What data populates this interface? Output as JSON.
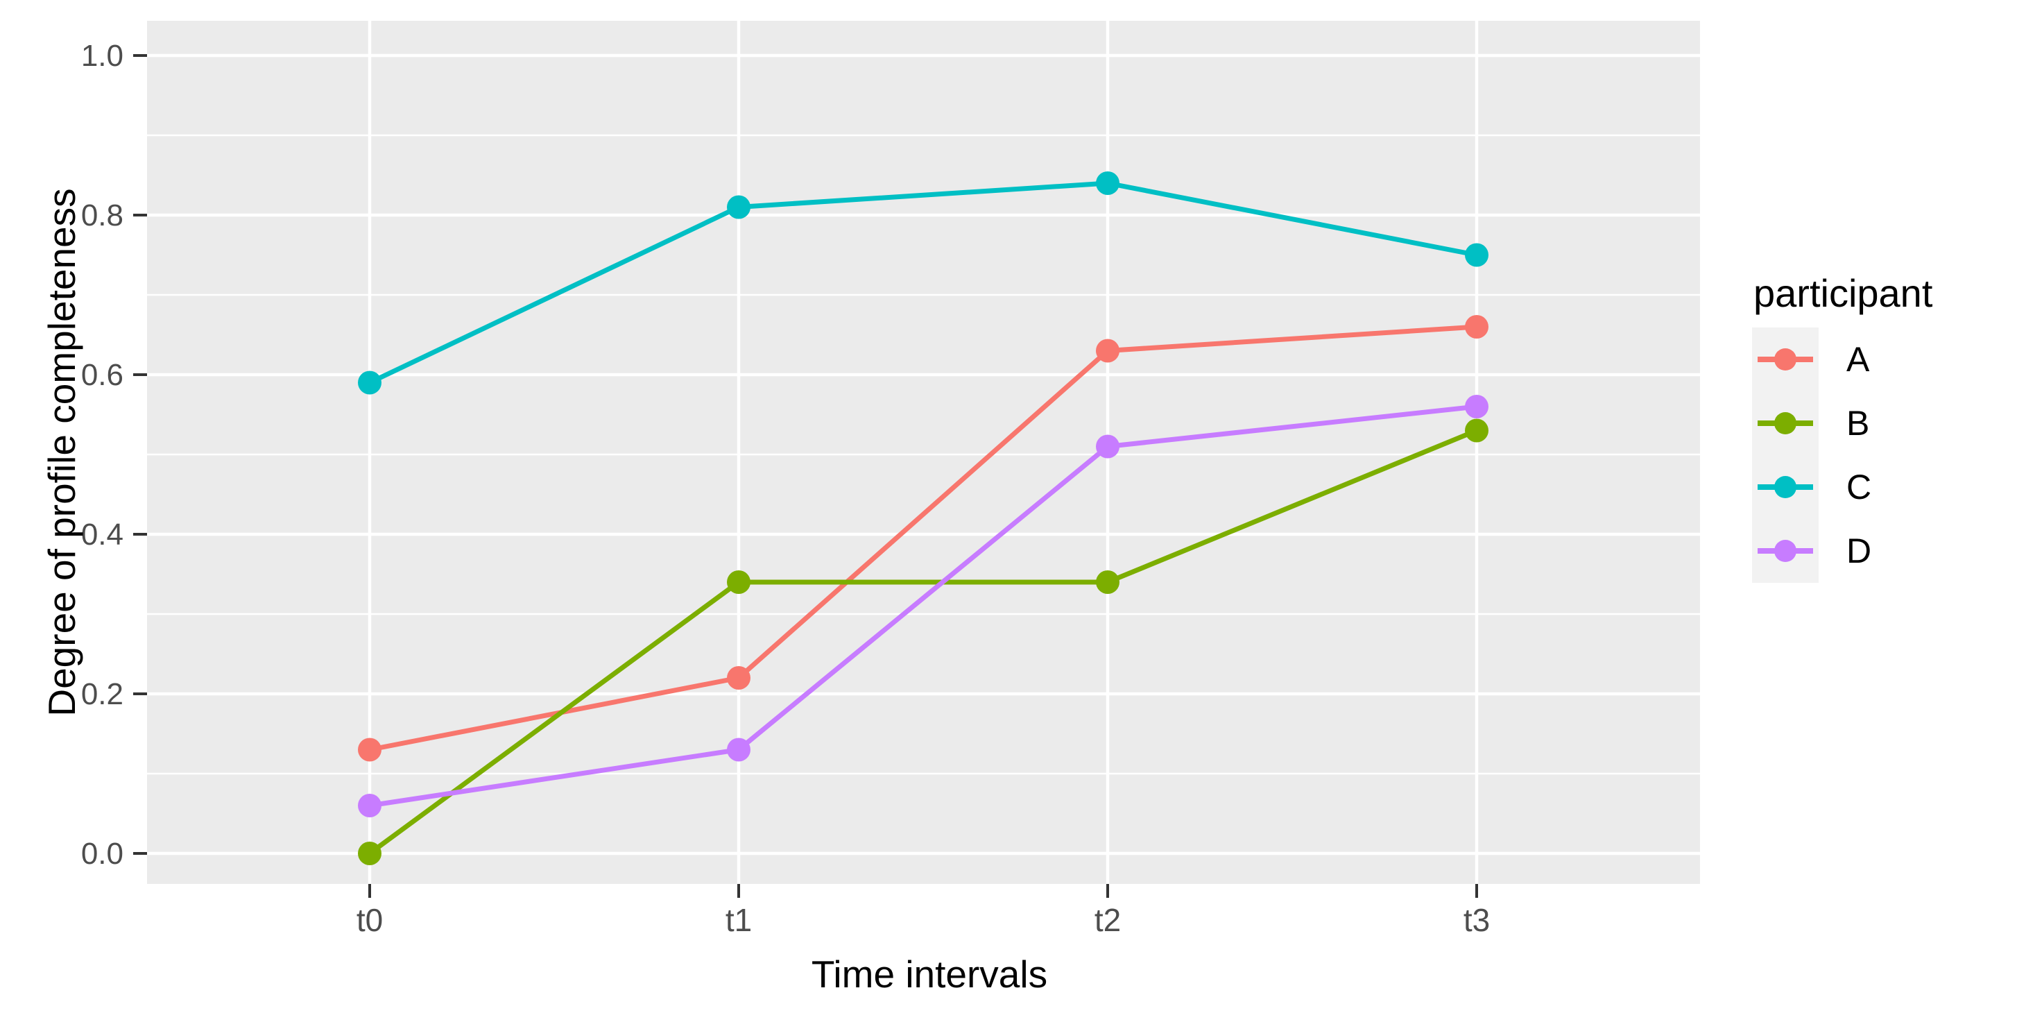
{
  "chart_data": {
    "type": "line",
    "title": "",
    "xlabel": "Time intervals",
    "ylabel": "Degree of profile completeness",
    "legend_title": "participant",
    "legend_position": "right",
    "categories": [
      "t0",
      "t1",
      "t2",
      "t3"
    ],
    "y_ticks": [
      "0.0",
      "0.2",
      "0.4",
      "0.6",
      "0.8",
      "1.0"
    ],
    "y_minor_ticks": [
      0.1,
      0.3,
      0.5,
      0.7,
      0.9
    ],
    "ylim": [
      0.0,
      1.0
    ],
    "grid": true,
    "series": [
      {
        "name": "A",
        "color": "#F8766D",
        "values": [
          0.13,
          0.22,
          0.63,
          0.66
        ]
      },
      {
        "name": "B",
        "color": "#7CAE00",
        "values": [
          0.0,
          0.34,
          0.34,
          0.53
        ]
      },
      {
        "name": "C",
        "color": "#00BFC4",
        "values": [
          0.59,
          0.81,
          0.84,
          0.75
        ]
      },
      {
        "name": "D",
        "color": "#C77CFF",
        "values": [
          0.06,
          0.13,
          0.51,
          0.56
        ]
      }
    ],
    "colors": {
      "panel_bg": "#EBEBEB",
      "grid": "#FFFFFF",
      "tick_mark": "#333333",
      "tick_label": "#4D4D4D",
      "axis_title": "#000000",
      "legend_key_bg": "#F2F2F2",
      "background": "#FFFFFF"
    }
  }
}
